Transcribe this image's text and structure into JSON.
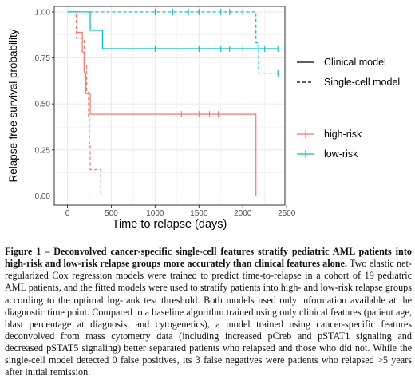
{
  "chart_data": {
    "type": "line",
    "subtype": "kaplan-meier step",
    "xlabel": "Time to relapse (days)",
    "ylabel": "Relapse-free survival probability",
    "xlim": [
      -150,
      2480
    ],
    "ylim": [
      -0.05,
      1.03
    ],
    "x_ticks": [
      0,
      500,
      1000,
      1500,
      2000,
      2500
    ],
    "x_tick_labels": [
      "0",
      "500",
      "1000",
      "1500",
      "2000",
      "2500"
    ],
    "y_ticks": [
      0,
      0.25,
      0.5,
      0.75,
      1.0
    ],
    "y_tick_labels": [
      "0.00",
      "0.25",
      "0.50",
      "0.75",
      "1.00"
    ],
    "grid": true,
    "panel_background": "#ffffff",
    "grid_color": "#ebebeb",
    "legend_placement": "right",
    "linetype_legend": [
      {
        "label": "Clinical model",
        "dash": "solid"
      },
      {
        "label": "Single-cell model",
        "dash": "dashed"
      }
    ],
    "color_legend": [
      {
        "label": "high-risk",
        "color": "#F8766D"
      },
      {
        "label": "low-risk",
        "color": "#00BFC4"
      }
    ],
    "series": [
      {
        "name": "high-risk",
        "model": "Clinical model",
        "color": "#F8766D",
        "dash": "solid",
        "steps": [
          [
            0,
            1.0
          ],
          [
            110,
            0.889
          ],
          [
            170,
            0.778
          ],
          [
            190,
            0.667
          ],
          [
            210,
            0.556
          ],
          [
            260,
            0.444
          ],
          [
            2150,
            0.0
          ]
        ],
        "end": 2150,
        "censor_x": [
          1300,
          1500,
          1620,
          1720
        ]
      },
      {
        "name": "low-risk",
        "model": "Clinical model",
        "color": "#00BFC4",
        "dash": "solid",
        "steps": [
          [
            0,
            1.0
          ],
          [
            260,
            0.9
          ],
          [
            400,
            0.8
          ]
        ],
        "end": 2400,
        "censor_x": [
          1000,
          1500,
          1750,
          1850,
          2000,
          2250,
          2400
        ]
      },
      {
        "name": "high-risk",
        "model": "Single-cell model",
        "color": "#F8766D",
        "dash": "dashed",
        "steps": [
          [
            0,
            1.0
          ],
          [
            100,
            0.857
          ],
          [
            190,
            0.714
          ],
          [
            220,
            0.571
          ],
          [
            240,
            0.429
          ],
          [
            250,
            0.286
          ],
          [
            260,
            0.143
          ],
          [
            380,
            0.0
          ]
        ],
        "end": 380,
        "censor_x": []
      },
      {
        "name": "low-risk",
        "model": "Single-cell model",
        "color": "#00BFC4",
        "dash": "dashed",
        "steps": [
          [
            0,
            1.0
          ],
          [
            2150,
            0.833
          ],
          [
            2180,
            0.667
          ]
        ],
        "end": 2400,
        "censor_x": [
          1000,
          1200,
          1380,
          1500,
          1750,
          1850,
          2000,
          2400
        ]
      }
    ]
  },
  "caption": {
    "title": "Figure 1 – Deconvolved cancer-specific single-cell features stratify pediatric AML patients into high-risk and low-risk relapse groups more accurately than clinical features alone.",
    "body": " Two elastic net-regularized Cox regression models were trained to predict time-to-relapse in a cohort of 19 pediatric AML patients, and the fitted models were used to stratify patients into high- and low-risk relapse groups according to the optimal log-rank test threshold. Both models used only information available at the diagnostic time point. Compared to a baseline algorithm trained using only clinical features (patient age, blast percentage at diagnosis, and cytogenetics), a model trained using cancer-specific features deconvolved from mass cytometry data (including increased pCreb and pSTAT1 signaling and decreased pSTAT5 signaling) better separated patients who relapsed and those who did not. While the single-cell model detected 0 false positives, its 3 false negatives were patients who relapsed >5 years after initial remission."
  }
}
